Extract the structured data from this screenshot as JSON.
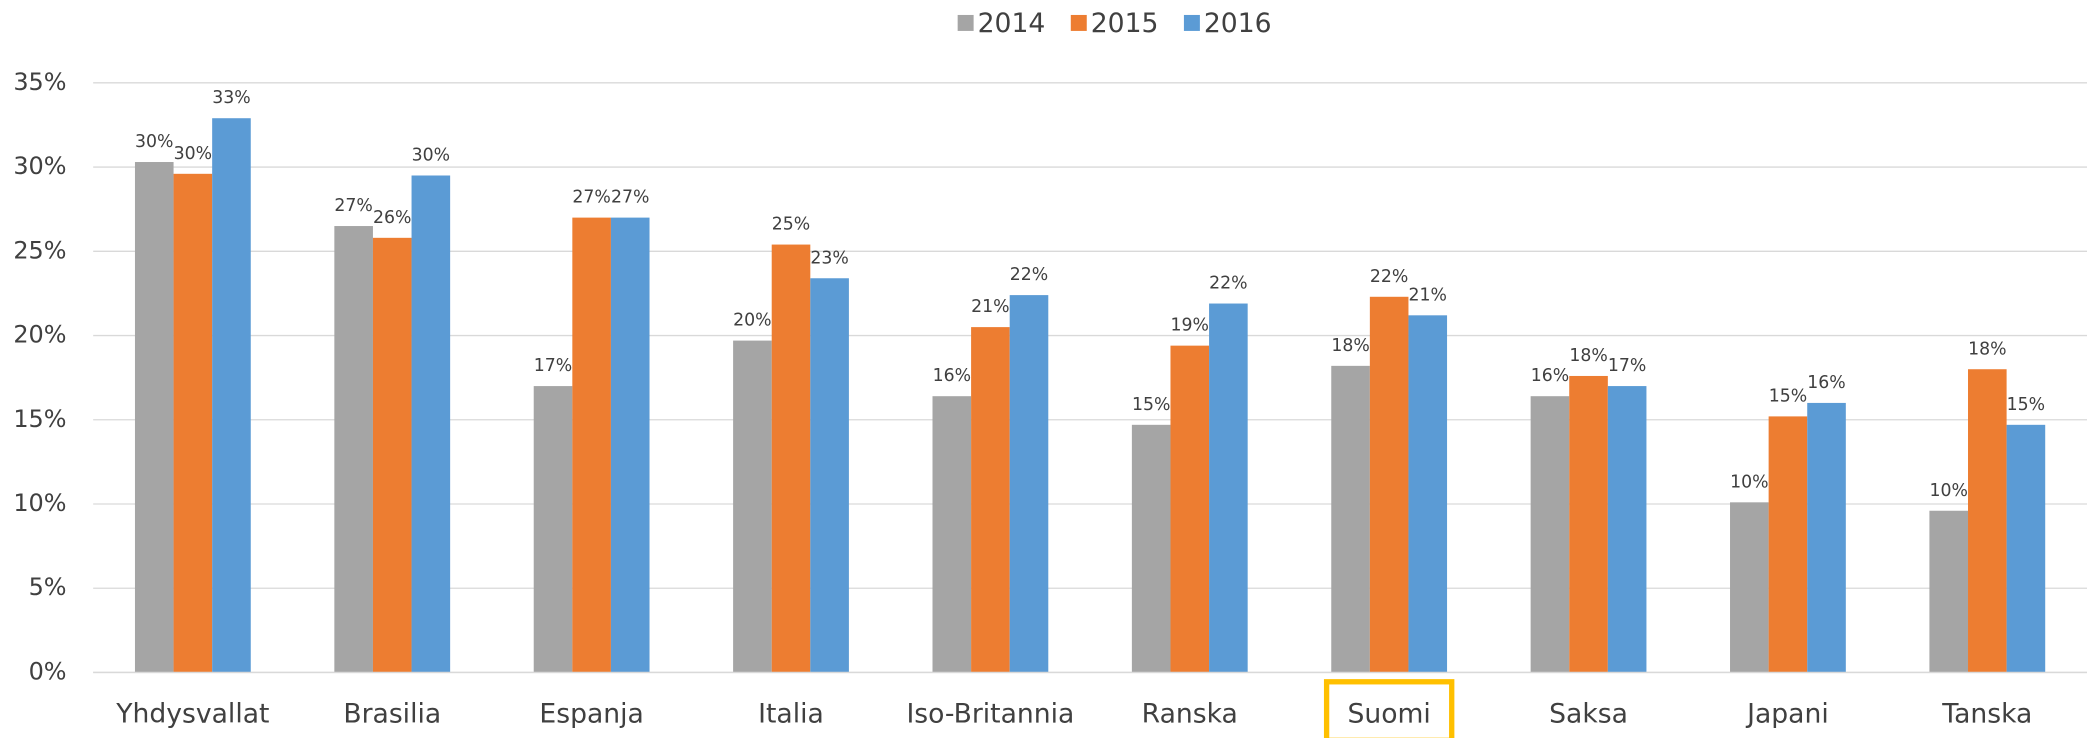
{
  "chart_data": {
    "type": "bar",
    "categories": [
      "Yhdysvallat",
      "Brasilia",
      "Espanja",
      "Italia",
      "Iso-Britannia",
      "Ranska",
      "Suomi",
      "Saksa",
      "Japani",
      "Tanska"
    ],
    "series": [
      {
        "name": "2014",
        "color": "#a5a5a5",
        "values": [
          30.3,
          26.5,
          17.0,
          19.7,
          16.4,
          14.7,
          18.2,
          16.4,
          10.1,
          9.6
        ],
        "value_labels": [
          "30%",
          "27%",
          "17%",
          "20%",
          "16%",
          "15%",
          "18%",
          "16%",
          "10%",
          "10%"
        ]
      },
      {
        "name": "2015",
        "color": "#ed7d31",
        "values": [
          29.6,
          25.8,
          27.0,
          25.4,
          20.5,
          19.4,
          22.3,
          17.6,
          15.2,
          18.0
        ],
        "value_labels": [
          "30%",
          "26%",
          "27%",
          "25%",
          "21%",
          "19%",
          "22%",
          "18%",
          "15%",
          "18%"
        ]
      },
      {
        "name": "2016",
        "color": "#5b9bd5",
        "values": [
          32.9,
          29.5,
          27.0,
          23.4,
          22.4,
          21.9,
          21.2,
          17.0,
          16.0,
          14.7
        ],
        "value_labels": [
          "33%",
          "30%",
          "27%",
          "23%",
          "22%",
          "22%",
          "21%",
          "17%",
          "16%",
          "15%"
        ]
      }
    ],
    "ylim": [
      0,
      35
    ],
    "yticks": [
      {
        "value": 0,
        "label": "0%"
      },
      {
        "value": 5,
        "label": "5%"
      },
      {
        "value": 10,
        "label": "10%"
      },
      {
        "value": 15,
        "label": "15%"
      },
      {
        "value": 20,
        "label": "20%"
      },
      {
        "value": 25,
        "label": "25%"
      },
      {
        "value": 30,
        "label": "30%"
      },
      {
        "value": 35,
        "label": "35%"
      }
    ],
    "grid": true,
    "legend": "top",
    "highlight": "Suomi"
  }
}
